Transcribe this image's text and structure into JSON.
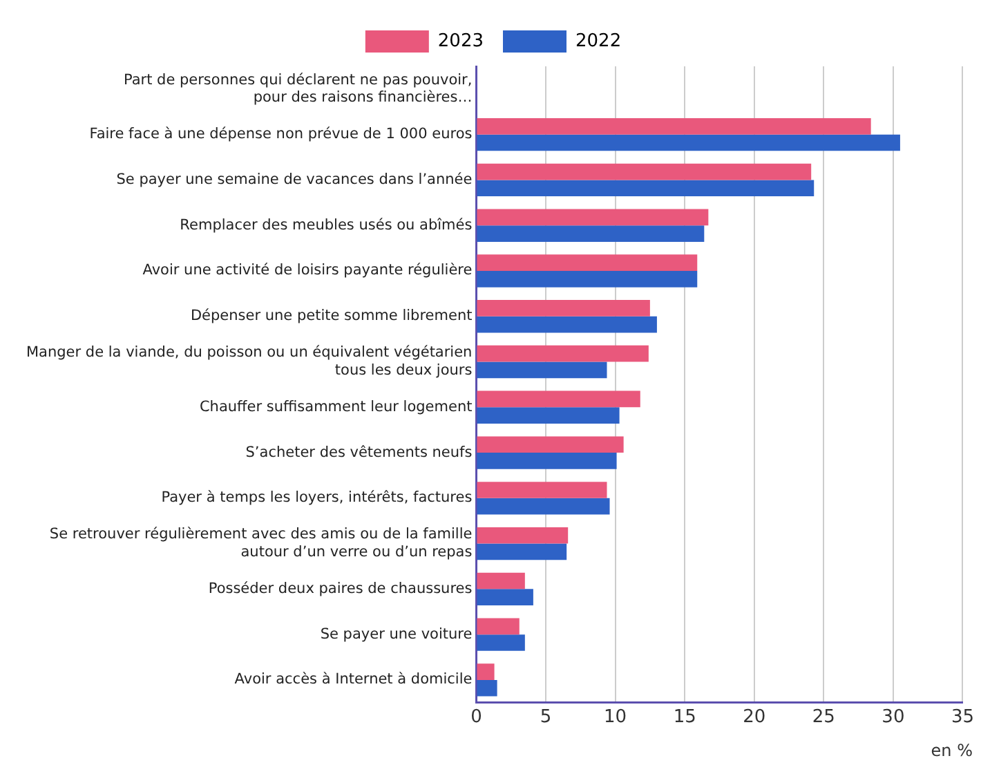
{
  "chart_data": {
    "type": "bar",
    "orientation": "horizontal",
    "categories": [
      "Part de personnes qui déclarent ne pas pouvoir,\npour des raisons financières…",
      "Faire face à une dépense non prévue de 1 000 euros",
      "Se payer une semaine de vacances dans l’année",
      "Remplacer des meubles usés ou abîmés",
      "Avoir une activité de loisirs payante régulière",
      "Dépenser une petite somme librement",
      "Manger de la viande, du poisson ou un équivalent végétarien\ntous les deux jours",
      "Chauffer suffisamment leur logement",
      "S’acheter des vêtements neufs",
      "Payer à temps les loyers, intérêts, factures",
      "Se retrouver régulièrement avec des amis ou de la famille\nautour d’un verre ou d’un repas",
      "Posséder deux paires de chaussures",
      "Se payer une voiture",
      "Avoir accès à Internet à domicile"
    ],
    "series": [
      {
        "name": "2023",
        "color": "#e9587c",
        "values": [
          null,
          28.4,
          24.1,
          16.7,
          15.9,
          12.5,
          12.4,
          11.8,
          10.6,
          9.4,
          6.6,
          3.5,
          3.1,
          1.3
        ]
      },
      {
        "name": "2022",
        "color": "#2e62c6",
        "values": [
          null,
          30.5,
          24.3,
          16.4,
          15.9,
          13.0,
          9.4,
          10.3,
          10.1,
          9.6,
          6.5,
          4.1,
          3.5,
          1.5
        ]
      }
    ],
    "xlim": [
      0,
      35
    ],
    "xticks": [
      0,
      5,
      10,
      15,
      20,
      25,
      30,
      35
    ],
    "grid": "x",
    "legend": "top",
    "annotations": [
      "en %"
    ]
  }
}
